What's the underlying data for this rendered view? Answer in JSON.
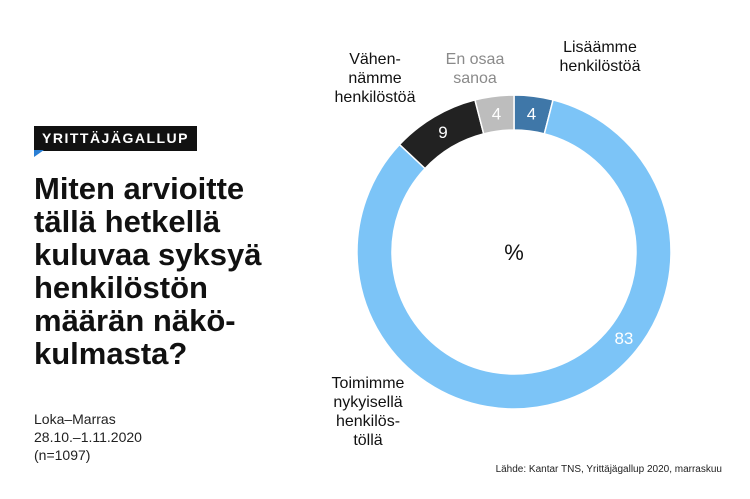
{
  "badge": "YRITTÄJÄGALLUP",
  "title": "Miten arvioitte\ntällä hetkellä\nkuluvaa syksyä\nhenkilöstön\nmäärän näkö-\nkulmasta?",
  "period": [
    "Loka–Marras",
    "28.10.–1.11.2020",
    "(n=1097)"
  ],
  "source": "Lähde: Kantar TNS, Yrittäjägallup 2020, marraskuu",
  "chart_data": {
    "type": "pie",
    "variant": "donut",
    "center_label": "%",
    "slices": [
      {
        "label": "Lisäämme\nhenkilöstöä",
        "value": 4,
        "color": "#3f77a8",
        "value_color": "#ffffff"
      },
      {
        "label": "Toimimme\nnykyisellä\nhenkilös-\ntöllä",
        "value": 83,
        "color": "#7cc4f7",
        "value_color": "#ffffff"
      },
      {
        "label": "Vähen-\nnämme\nhenkilöstöä",
        "value": 9,
        "color": "#222222",
        "value_color": "#ffffff"
      },
      {
        "label": "En osaa\nsanoa",
        "value": 4,
        "color": "#bdbdbd",
        "value_color": "#ffffff",
        "label_color": "#8a8a8a"
      }
    ]
  }
}
